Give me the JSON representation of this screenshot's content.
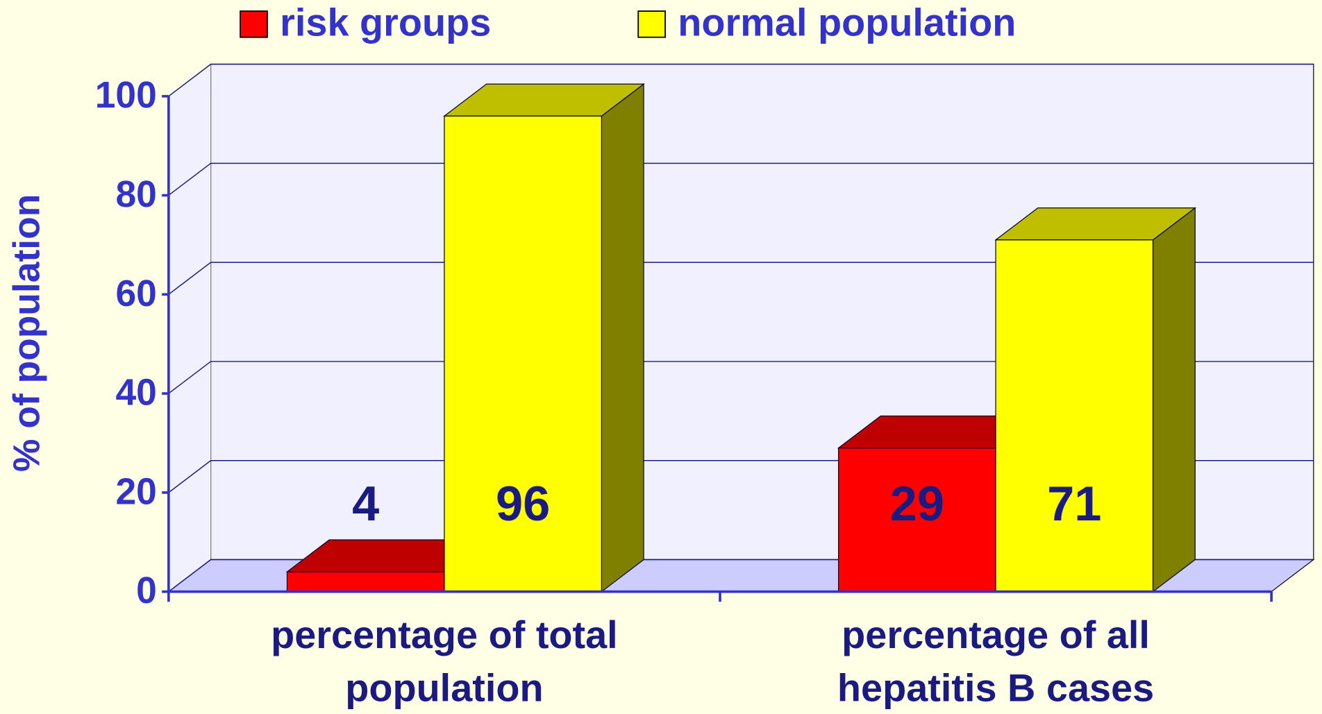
{
  "chart_data": {
    "type": "bar3d",
    "ylabel": "% of population",
    "categories": [
      [
        "percentage of total",
        "population"
      ],
      [
        "percentage of all",
        "hepatitis B cases"
      ]
    ],
    "series": [
      {
        "name": "risk groups",
        "color": "#ff0000",
        "values": [
          4,
          29
        ]
      },
      {
        "name": "normal population",
        "color": "#ffff00",
        "values": [
          96,
          71
        ]
      }
    ],
    "ylim": [
      0,
      100
    ],
    "yticks": [
      0,
      20,
      40,
      60,
      80,
      100
    ],
    "grid": true,
    "legend": "top"
  }
}
